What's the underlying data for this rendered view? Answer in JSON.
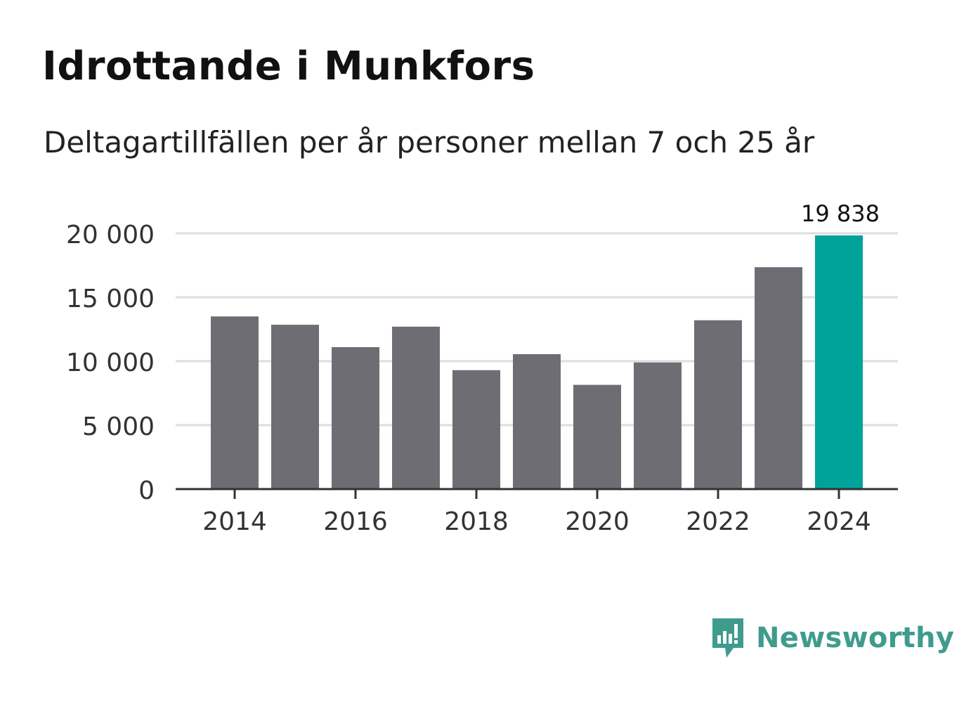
{
  "title": "Idrottande i Munkfors",
  "subtitle": "Deltagartillfällen per år personer mellan 7 och 25 år",
  "brand": {
    "name": "Newsworthy",
    "icon": "newsworthy-logo-icon"
  },
  "colors": {
    "bar": "#6e6d73",
    "highlight": "#00a39a",
    "grid": "#dddddd",
    "axis": "#333333",
    "brand": "#3f9c8d"
  },
  "chart_data": {
    "type": "bar",
    "title": "Idrottande i Munkfors",
    "subtitle": "Deltagartillfällen per år personer mellan 7 och 25 år",
    "xlabel": "",
    "ylabel": "",
    "categories": [
      "2014",
      "2015",
      "2016",
      "2017",
      "2018",
      "2019",
      "2020",
      "2021",
      "2022",
      "2023",
      "2024"
    ],
    "values": [
      13500,
      12850,
      11100,
      12700,
      9300,
      10550,
      8150,
      9900,
      13200,
      17350,
      19838
    ],
    "highlight_index": 10,
    "highlight_label": "19 838",
    "ylim": [
      0,
      20000
    ],
    "yticks": [
      0,
      5000,
      10000,
      15000,
      20000
    ],
    "ytick_labels": [
      "0",
      "5 000",
      "10 000",
      "15 000",
      "20 000"
    ],
    "xticks": [
      "2014",
      "2016",
      "2018",
      "2020",
      "2022",
      "2024"
    ],
    "grid": true
  }
}
